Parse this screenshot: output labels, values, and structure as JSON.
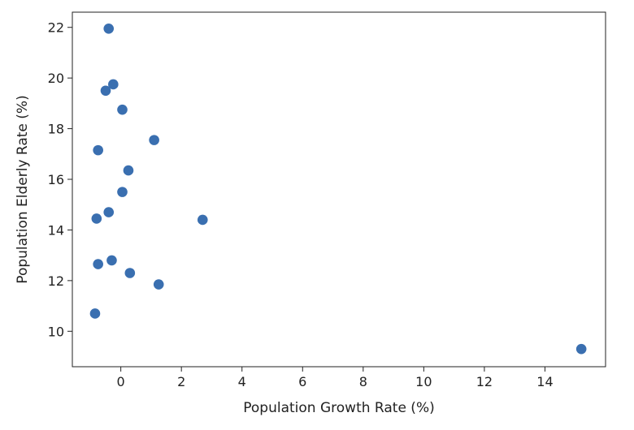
{
  "chart_data": {
    "type": "scatter",
    "title": "",
    "xlabel": "Population Growth Rate (%)",
    "ylabel": "Population Elderly Rate (%)",
    "xlim": [
      -1.6,
      16.0
    ],
    "ylim": [
      8.6,
      22.6
    ],
    "x_ticks": [
      0,
      2,
      4,
      6,
      8,
      10,
      12,
      14
    ],
    "x_tick_labels": [
      "0",
      "2",
      "4",
      "6",
      "8",
      "10",
      "12",
      "14"
    ],
    "y_ticks": [
      10,
      12,
      14,
      16,
      18,
      20,
      22
    ],
    "y_tick_labels": [
      "10",
      "12",
      "14",
      "16",
      "18",
      "20",
      "22"
    ],
    "grid": false,
    "legend": "none",
    "marker_color": "#3a6fb0",
    "series": [
      {
        "points": [
          {
            "x": -0.4,
            "y": 21.95
          },
          {
            "x": -0.25,
            "y": 19.75
          },
          {
            "x": -0.5,
            "y": 19.5
          },
          {
            "x": 0.05,
            "y": 18.75
          },
          {
            "x": 1.1,
            "y": 17.55
          },
          {
            "x": -0.75,
            "y": 17.15
          },
          {
            "x": 0.25,
            "y": 16.35
          },
          {
            "x": 0.05,
            "y": 15.5
          },
          {
            "x": -0.4,
            "y": 14.7
          },
          {
            "x": -0.8,
            "y": 14.45
          },
          {
            "x": 2.7,
            "y": 14.4
          },
          {
            "x": -0.3,
            "y": 12.8
          },
          {
            "x": -0.75,
            "y": 12.65
          },
          {
            "x": 0.3,
            "y": 12.3
          },
          {
            "x": 1.25,
            "y": 11.85
          },
          {
            "x": -0.85,
            "y": 10.7
          },
          {
            "x": 15.2,
            "y": 9.3
          }
        ]
      }
    ]
  }
}
